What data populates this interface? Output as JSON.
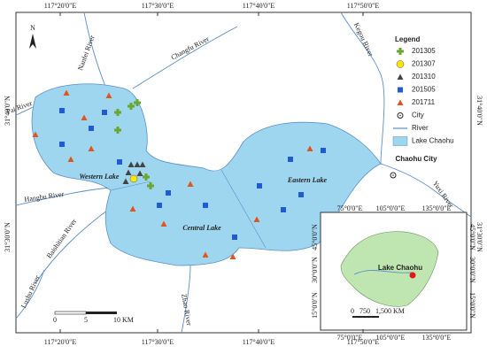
{
  "map": {
    "north": "N",
    "lon_labels": [
      "117°20'0\"E",
      "117°30'0\"E",
      "117°40'0\"E",
      "117°50'0\"E"
    ],
    "lat_labels": [
      "31°40'0\"N",
      "31°30'0\"N"
    ],
    "rivers": [
      "Pai River",
      "Nanfei River",
      "Changfu River",
      "Kegou River",
      "Yuxi River",
      "Hangbu River",
      "Baishitian River",
      "Lushu River",
      "Zhao River"
    ],
    "lakes": [
      "Western Lake",
      "Central Lake",
      "Eastern Lake"
    ],
    "city": "Chaohu City",
    "legend": {
      "title": "Legend",
      "items": [
        "201305",
        "201307",
        "201310",
        "201505",
        "201711",
        "City",
        "River",
        "Lake Chaohu"
      ]
    },
    "scale": [
      "0",
      "5",
      "10 KM"
    ],
    "inset": {
      "lon_labels": [
        "75°0'0\"E",
        "105°0'0\"E",
        "135°0'0\"E"
      ],
      "lat_labels": [
        "45°0'0\"N",
        "30°0'0\"N",
        "15°0'0\"N"
      ],
      "lake": "Lake Chaohu",
      "scale": [
        "0",
        "750",
        "1,500 KM"
      ]
    }
  }
}
